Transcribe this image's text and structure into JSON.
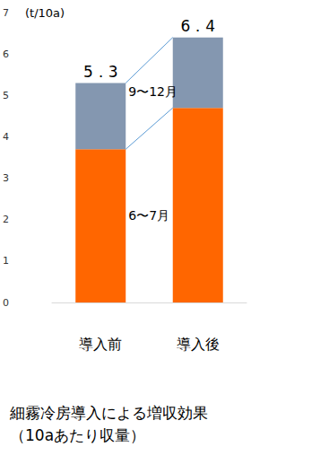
{
  "chart_data": {
    "type": "bar",
    "title": "細霧冷房導入による増収効果",
    "subtitle": "（10aあたり収量）",
    "y_label": "(t/10a)",
    "categories": [
      "導入前",
      "導入後"
    ],
    "series": [
      {
        "name": "6〜7月",
        "color": "#ff6600",
        "values": [
          3.7,
          4.7
        ]
      },
      {
        "name": "9〜12月",
        "color": "#8497b0",
        "values": [
          1.6,
          1.7
        ]
      }
    ],
    "totals": [
      5.3,
      6.4
    ],
    "total_labels": [
      "5．3",
      "6．4"
    ],
    "stacked": true,
    "ylim": [
      0,
      7
    ],
    "yticks": [
      0,
      1,
      2,
      3,
      4,
      5,
      6,
      7
    ],
    "grid": false
  }
}
